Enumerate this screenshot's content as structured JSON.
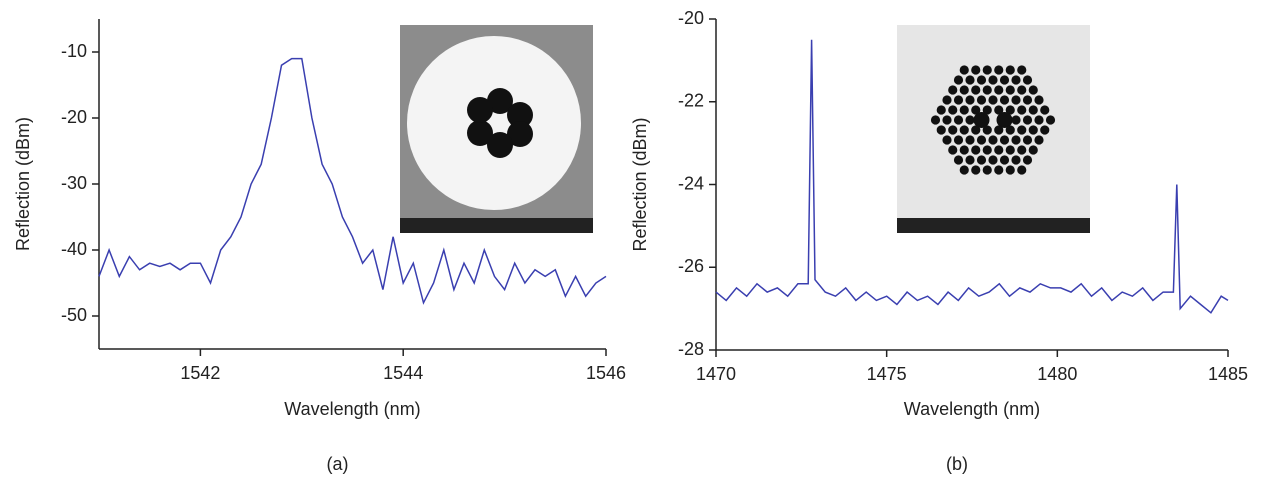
{
  "chart_data": [
    {
      "type": "line",
      "label": "(a)",
      "x_label": "Wavelength (nm)",
      "y_label": "Reflection (dBm)",
      "color": "#3a3fb0",
      "xlim": [
        1541,
        1546
      ],
      "xticks": [
        1542,
        1544,
        1546
      ],
      "ylim": [
        -55,
        -5
      ],
      "yticks": [
        -50,
        -40,
        -30,
        -20,
        -10
      ],
      "x": [
        1541.0,
        1541.1,
        1541.2,
        1541.3,
        1541.4,
        1541.5,
        1541.6,
        1541.7,
        1541.8,
        1541.9,
        1542.0,
        1542.1,
        1542.2,
        1542.3,
        1542.4,
        1542.5,
        1542.6,
        1542.7,
        1542.8,
        1542.9,
        1543.0,
        1543.1,
        1543.2,
        1543.3,
        1543.4,
        1543.5,
        1543.6,
        1543.7,
        1543.8,
        1543.9,
        1544.0,
        1544.1,
        1544.2,
        1544.3,
        1544.4,
        1544.5,
        1544.6,
        1544.7,
        1544.8,
        1544.9,
        1545.0,
        1545.1,
        1545.2,
        1545.3,
        1545.4,
        1545.5,
        1545.6,
        1545.7,
        1545.8,
        1545.9,
        1546.0
      ],
      "values": [
        -44,
        -40,
        -44,
        -41,
        -43,
        -42,
        -42.5,
        -42,
        -43,
        -42,
        -42,
        -45,
        -40,
        -38,
        -35,
        -30,
        -27,
        -20,
        -12,
        -11,
        -11,
        -20,
        -27,
        -30,
        -35,
        -38,
        -42,
        -40,
        -46,
        -38,
        -45,
        -42,
        -48,
        -45,
        -40,
        -46,
        -42,
        -45,
        -40,
        -44,
        -46,
        -42,
        -45,
        -43,
        -44,
        -43,
        -47,
        -44,
        -47,
        -45,
        -44
      ]
    },
    {
      "type": "line",
      "label": "(b)",
      "x_label": "Wavelength (nm)",
      "y_label": "Reflection (dBm)",
      "color": "#3a3fb0",
      "xlim": [
        1470,
        1485
      ],
      "xticks": [
        1470,
        1475,
        1480,
        1485
      ],
      "ylim": [
        -28,
        -20
      ],
      "yticks": [
        -28,
        -26,
        -24,
        -22,
        -20
      ],
      "x": [
        1470,
        1470.3,
        1470.6,
        1470.9,
        1471.2,
        1471.5,
        1471.8,
        1472.1,
        1472.4,
        1472.7,
        1472.8,
        1472.9,
        1473.2,
        1473.5,
        1473.8,
        1474.1,
        1474.4,
        1474.7,
        1475,
        1475.3,
        1475.6,
        1475.9,
        1476.2,
        1476.5,
        1476.8,
        1477.1,
        1477.4,
        1477.7,
        1478,
        1478.3,
        1478.6,
        1478.9,
        1479.2,
        1479.5,
        1479.8,
        1480.1,
        1480.4,
        1480.7,
        1481,
        1481.3,
        1481.6,
        1481.9,
        1482.2,
        1482.5,
        1482.8,
        1483.1,
        1483.4,
        1483.5,
        1483.6,
        1483.9,
        1484.2,
        1484.5,
        1484.8,
        1485
      ],
      "values": [
        -26.6,
        -26.8,
        -26.5,
        -26.7,
        -26.4,
        -26.6,
        -26.5,
        -26.7,
        -26.4,
        -26.4,
        -20.5,
        -26.3,
        -26.6,
        -26.7,
        -26.5,
        -26.8,
        -26.6,
        -26.8,
        -26.7,
        -26.9,
        -26.6,
        -26.8,
        -26.7,
        -26.9,
        -26.6,
        -26.8,
        -26.5,
        -26.7,
        -26.6,
        -26.4,
        -26.7,
        -26.5,
        -26.6,
        -26.4,
        -26.5,
        -26.5,
        -26.6,
        -26.4,
        -26.7,
        -26.5,
        -26.8,
        -26.6,
        -26.7,
        -26.5,
        -26.8,
        -26.6,
        -26.6,
        -24.0,
        -27.0,
        -26.7,
        -26.9,
        -27.1,
        -26.7,
        -26.8
      ]
    }
  ]
}
